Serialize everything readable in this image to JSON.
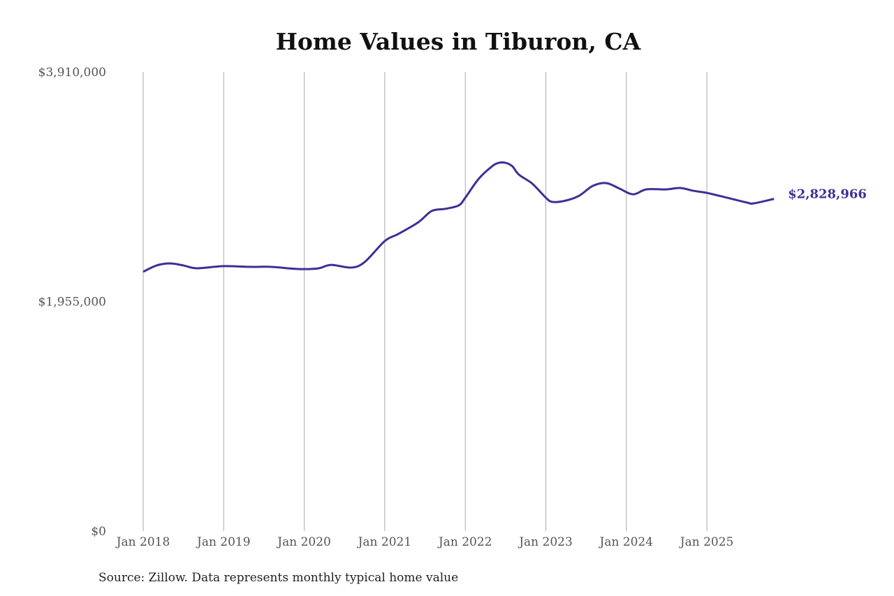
{
  "chart_data": {
    "type": "line",
    "title": "Home Values in Tiburon, CA",
    "xlabel": "",
    "ylabel": "",
    "ylim": [
      0,
      3910000
    ],
    "y_ticks": [
      0,
      1955000,
      3910000
    ],
    "y_tick_labels": [
      "$0",
      "$1,955,000",
      "$3,910,000"
    ],
    "x_ticks": [
      "2018-01",
      "2019-01",
      "2020-01",
      "2021-01",
      "2022-01",
      "2023-01",
      "2024-01",
      "2025-01"
    ],
    "x_tick_labels": [
      "Jan 2018",
      "Jan 2019",
      "Jan 2020",
      "Jan 2021",
      "Jan 2022",
      "Jan 2023",
      "Jan 2024",
      "Jan 2025"
    ],
    "grid": "vertical",
    "line_color": "#3a3197",
    "end_label": "$2,828,966",
    "series": [
      {
        "x": [
          "2018-01",
          "2018-03",
          "2018-05",
          "2018-07",
          "2018-09",
          "2019-01",
          "2019-05",
          "2019-08",
          "2019-12",
          "2020-03",
          "2020-05",
          "2020-08",
          "2020-10",
          "2021-01",
          "2021-03",
          "2021-06",
          "2021-08",
          "2021-10",
          "2021-12",
          "2022-01",
          "2022-03",
          "2022-05",
          "2022-06",
          "2022-07",
          "2022-08",
          "2022-09",
          "2022-11",
          "2023-01",
          "2023-02",
          "2023-04",
          "2023-06",
          "2023-08",
          "2023-10",
          "2023-12",
          "2024-02",
          "2024-04",
          "2024-07",
          "2024-09",
          "2024-11",
          "2025-01",
          "2025-04",
          "2025-07",
          "2025-08",
          "2025-11"
        ],
        "y": [
          2208000,
          2262000,
          2279000,
          2262000,
          2238000,
          2256000,
          2250000,
          2250000,
          2232000,
          2236000,
          2267000,
          2244000,
          2291000,
          2470000,
          2530000,
          2630000,
          2726000,
          2744000,
          2773000,
          2839000,
          3000000,
          3107000,
          3136000,
          3136000,
          3107000,
          3035000,
          2958000,
          2839000,
          2803000,
          2815000,
          2857000,
          2940000,
          2964000,
          2916000,
          2868000,
          2910000,
          2910000,
          2922000,
          2898000,
          2880000,
          2839000,
          2797000,
          2791000,
          2828966
        ]
      }
    ]
  },
  "source": "Source: Zillow. Data represents monthly typical home value"
}
